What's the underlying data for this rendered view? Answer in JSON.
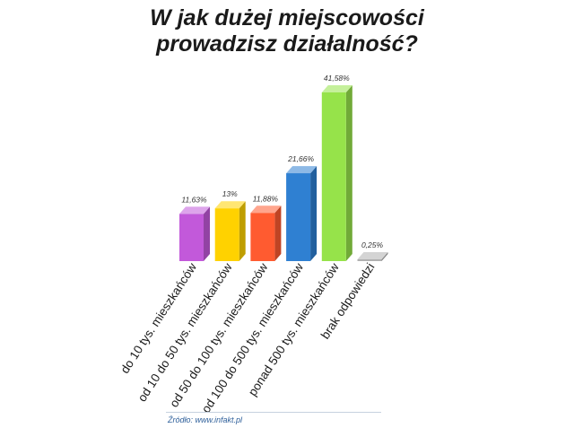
{
  "title_lines": [
    "W jak dużej miejscowości",
    "prowadzisz działalność?"
  ],
  "source": "Źródło: www.infakt.pl",
  "chart_data": {
    "type": "bar",
    "title": "W jak dużej miejscowości prowadzisz działalność?",
    "categories": [
      "do 10 tys. mieszkańców",
      "od 10 do 50 tys. mieszkańców",
      "od 50 do 100 tys. mieszkańców",
      "od 100 do 500 tys. mieszkańców",
      "ponad 500 tys. mieszkańców",
      "brak odpowiedzi"
    ],
    "values": [
      11.63,
      13,
      11.88,
      21.66,
      41.58,
      0.25
    ],
    "value_labels": [
      "11,63%",
      "13%",
      "11,88%",
      "21,66%",
      "41,58%",
      "0,25%"
    ],
    "colors": [
      "#c259da",
      "#ffd200",
      "#ff5b30",
      "#2f80d2",
      "#96e34a",
      "#b0b0b0"
    ],
    "xlabel": "",
    "ylabel": "",
    "ylim": [
      0,
      41.58
    ],
    "grid": false,
    "legend": "none"
  }
}
